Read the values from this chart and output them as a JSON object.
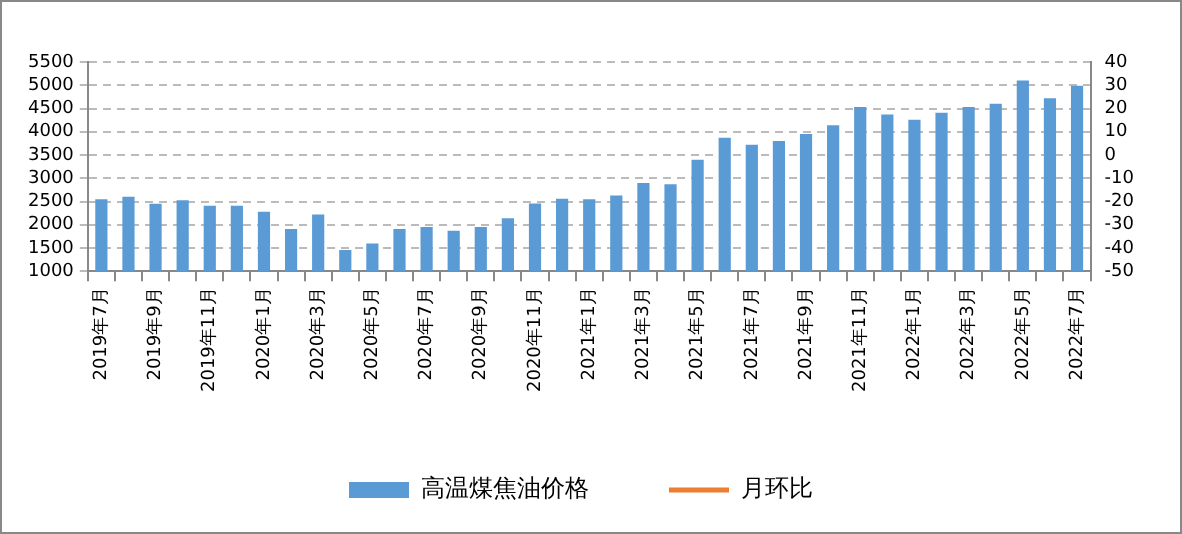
{
  "chart_data": {
    "type": "bar",
    "categories": [
      "2019年7月",
      null,
      "2019年9月",
      null,
      "2019年11月",
      null,
      "2020年1月",
      null,
      "2020年3月",
      null,
      "2020年5月",
      null,
      "2020年7月",
      null,
      "2020年9月",
      null,
      "2020年11月",
      null,
      "2021年1月",
      null,
      "2021年3月",
      null,
      "2021年5月",
      null,
      "2021年7月",
      null,
      "2021年9月",
      null,
      "2021年11月",
      null,
      "2022年1月",
      null,
      "2022年3月",
      null,
      "2022年5月",
      null,
      "2022年7月"
    ],
    "series": [
      {
        "name": "高温煤焦油价格",
        "color": "#5b9bd5",
        "values": [
          2550,
          2600,
          2450,
          2530,
          2410,
          2410,
          2280,
          1910,
          2220,
          1460,
          1600,
          1910,
          1950,
          1870,
          1950,
          2140,
          2460,
          2560,
          2550,
          2630,
          2900,
          2870,
          3400,
          3870,
          3720,
          3800,
          3950,
          4140,
          4530,
          4370,
          4260,
          4410,
          4530,
          4600,
          5100,
          4720,
          4990
        ]
      },
      {
        "name": "月环比",
        "type": "line",
        "axis": "y2",
        "color": "#ed7d31",
        "values": [
          null,
          null,
          null,
          null,
          null,
          null,
          null,
          null,
          null,
          null,
          null,
          null,
          null,
          null,
          null,
          null,
          null,
          null,
          null,
          null,
          null,
          null,
          null,
          null,
          null,
          null,
          null,
          null,
          null,
          null,
          null,
          null,
          null,
          null,
          null,
          null,
          null
        ]
      }
    ],
    "ylim": [
      1000,
      5500
    ],
    "yticks": [
      1000,
      1500,
      2000,
      2500,
      3000,
      3500,
      4000,
      4500,
      5000,
      5500
    ],
    "y2lim": [
      -50,
      40
    ],
    "y2ticks": [
      -50,
      -40,
      -30,
      -20,
      -10,
      0,
      10,
      20,
      30,
      40
    ],
    "grid": "y",
    "legend": "bottom"
  }
}
